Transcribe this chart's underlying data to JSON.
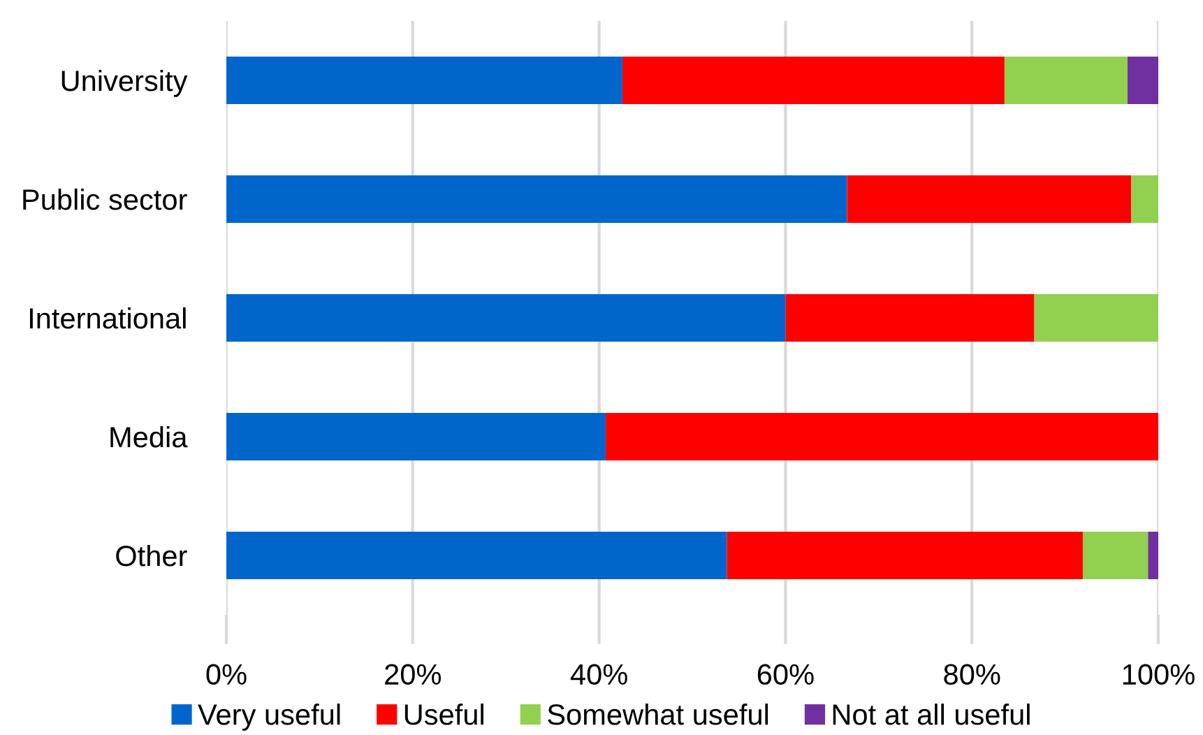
{
  "chart_data": {
    "type": "bar",
    "orientation": "horizontal",
    "stacked": true,
    "categories": [
      "University",
      "Public sector",
      "International",
      "Media",
      "Other"
    ],
    "series": [
      {
        "name": "Very useful",
        "color": "#0066cc",
        "values": [
          42.5,
          66.6,
          60.0,
          40.7,
          53.7
        ]
      },
      {
        "name": "Useful",
        "color": "#ff0000",
        "values": [
          41.0,
          30.5,
          26.7,
          59.3,
          38.2
        ]
      },
      {
        "name": "Somewhat useful",
        "color": "#92d050",
        "values": [
          13.2,
          2.9,
          13.3,
          null,
          7.0
        ]
      },
      {
        "name": "Not at all useful",
        "color": "#7030a0",
        "values": [
          3.3,
          null,
          null,
          null,
          1.1
        ]
      }
    ],
    "xlim": [
      0,
      100
    ],
    "xticks": [
      {
        "value": 0,
        "label": "0%"
      },
      {
        "value": 20,
        "label": "20%"
      },
      {
        "value": 40,
        "label": "40%"
      },
      {
        "value": 60,
        "label": "60%"
      },
      {
        "value": 80,
        "label": "80%"
      },
      {
        "value": 100,
        "label": "100%"
      }
    ],
    "grid": "x",
    "legend": "bottom"
  }
}
